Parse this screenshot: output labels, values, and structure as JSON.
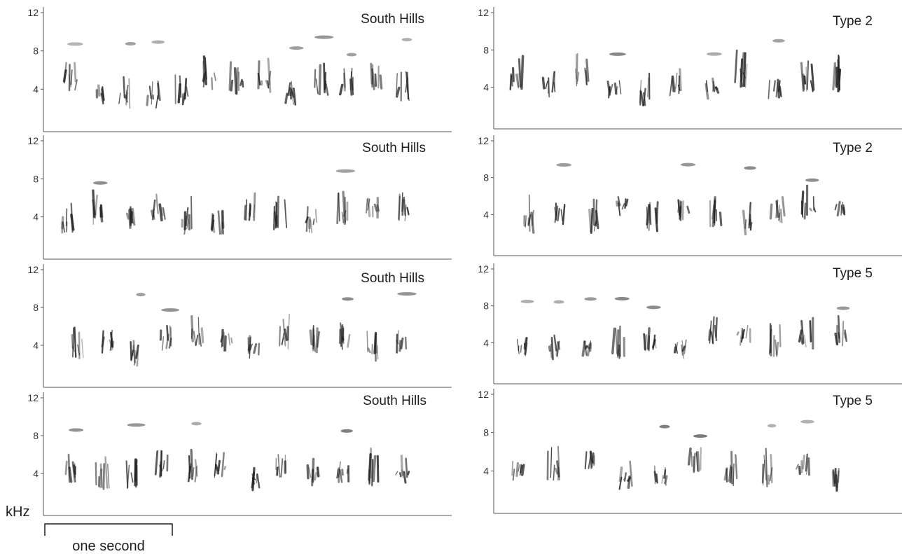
{
  "figure": {
    "unit_label": "kHz",
    "scale_bar_label": "one second",
    "tick_labels": [
      "12",
      "8",
      "4"
    ],
    "panels": [
      {
        "id": "left-1",
        "title": "South Hills"
      },
      {
        "id": "left-2",
        "title": "South Hills"
      },
      {
        "id": "left-3",
        "title": "South Hills"
      },
      {
        "id": "left-4",
        "title": "South Hills"
      },
      {
        "id": "right-1",
        "title": "Type 2"
      },
      {
        "id": "right-2",
        "title": "Type 2"
      },
      {
        "id": "right-3",
        "title": "Type 5"
      },
      {
        "id": "right-4",
        "title": "Type 5"
      }
    ]
  },
  "colors": {
    "ink": "#1e1e1e",
    "axis": "#555555"
  }
}
